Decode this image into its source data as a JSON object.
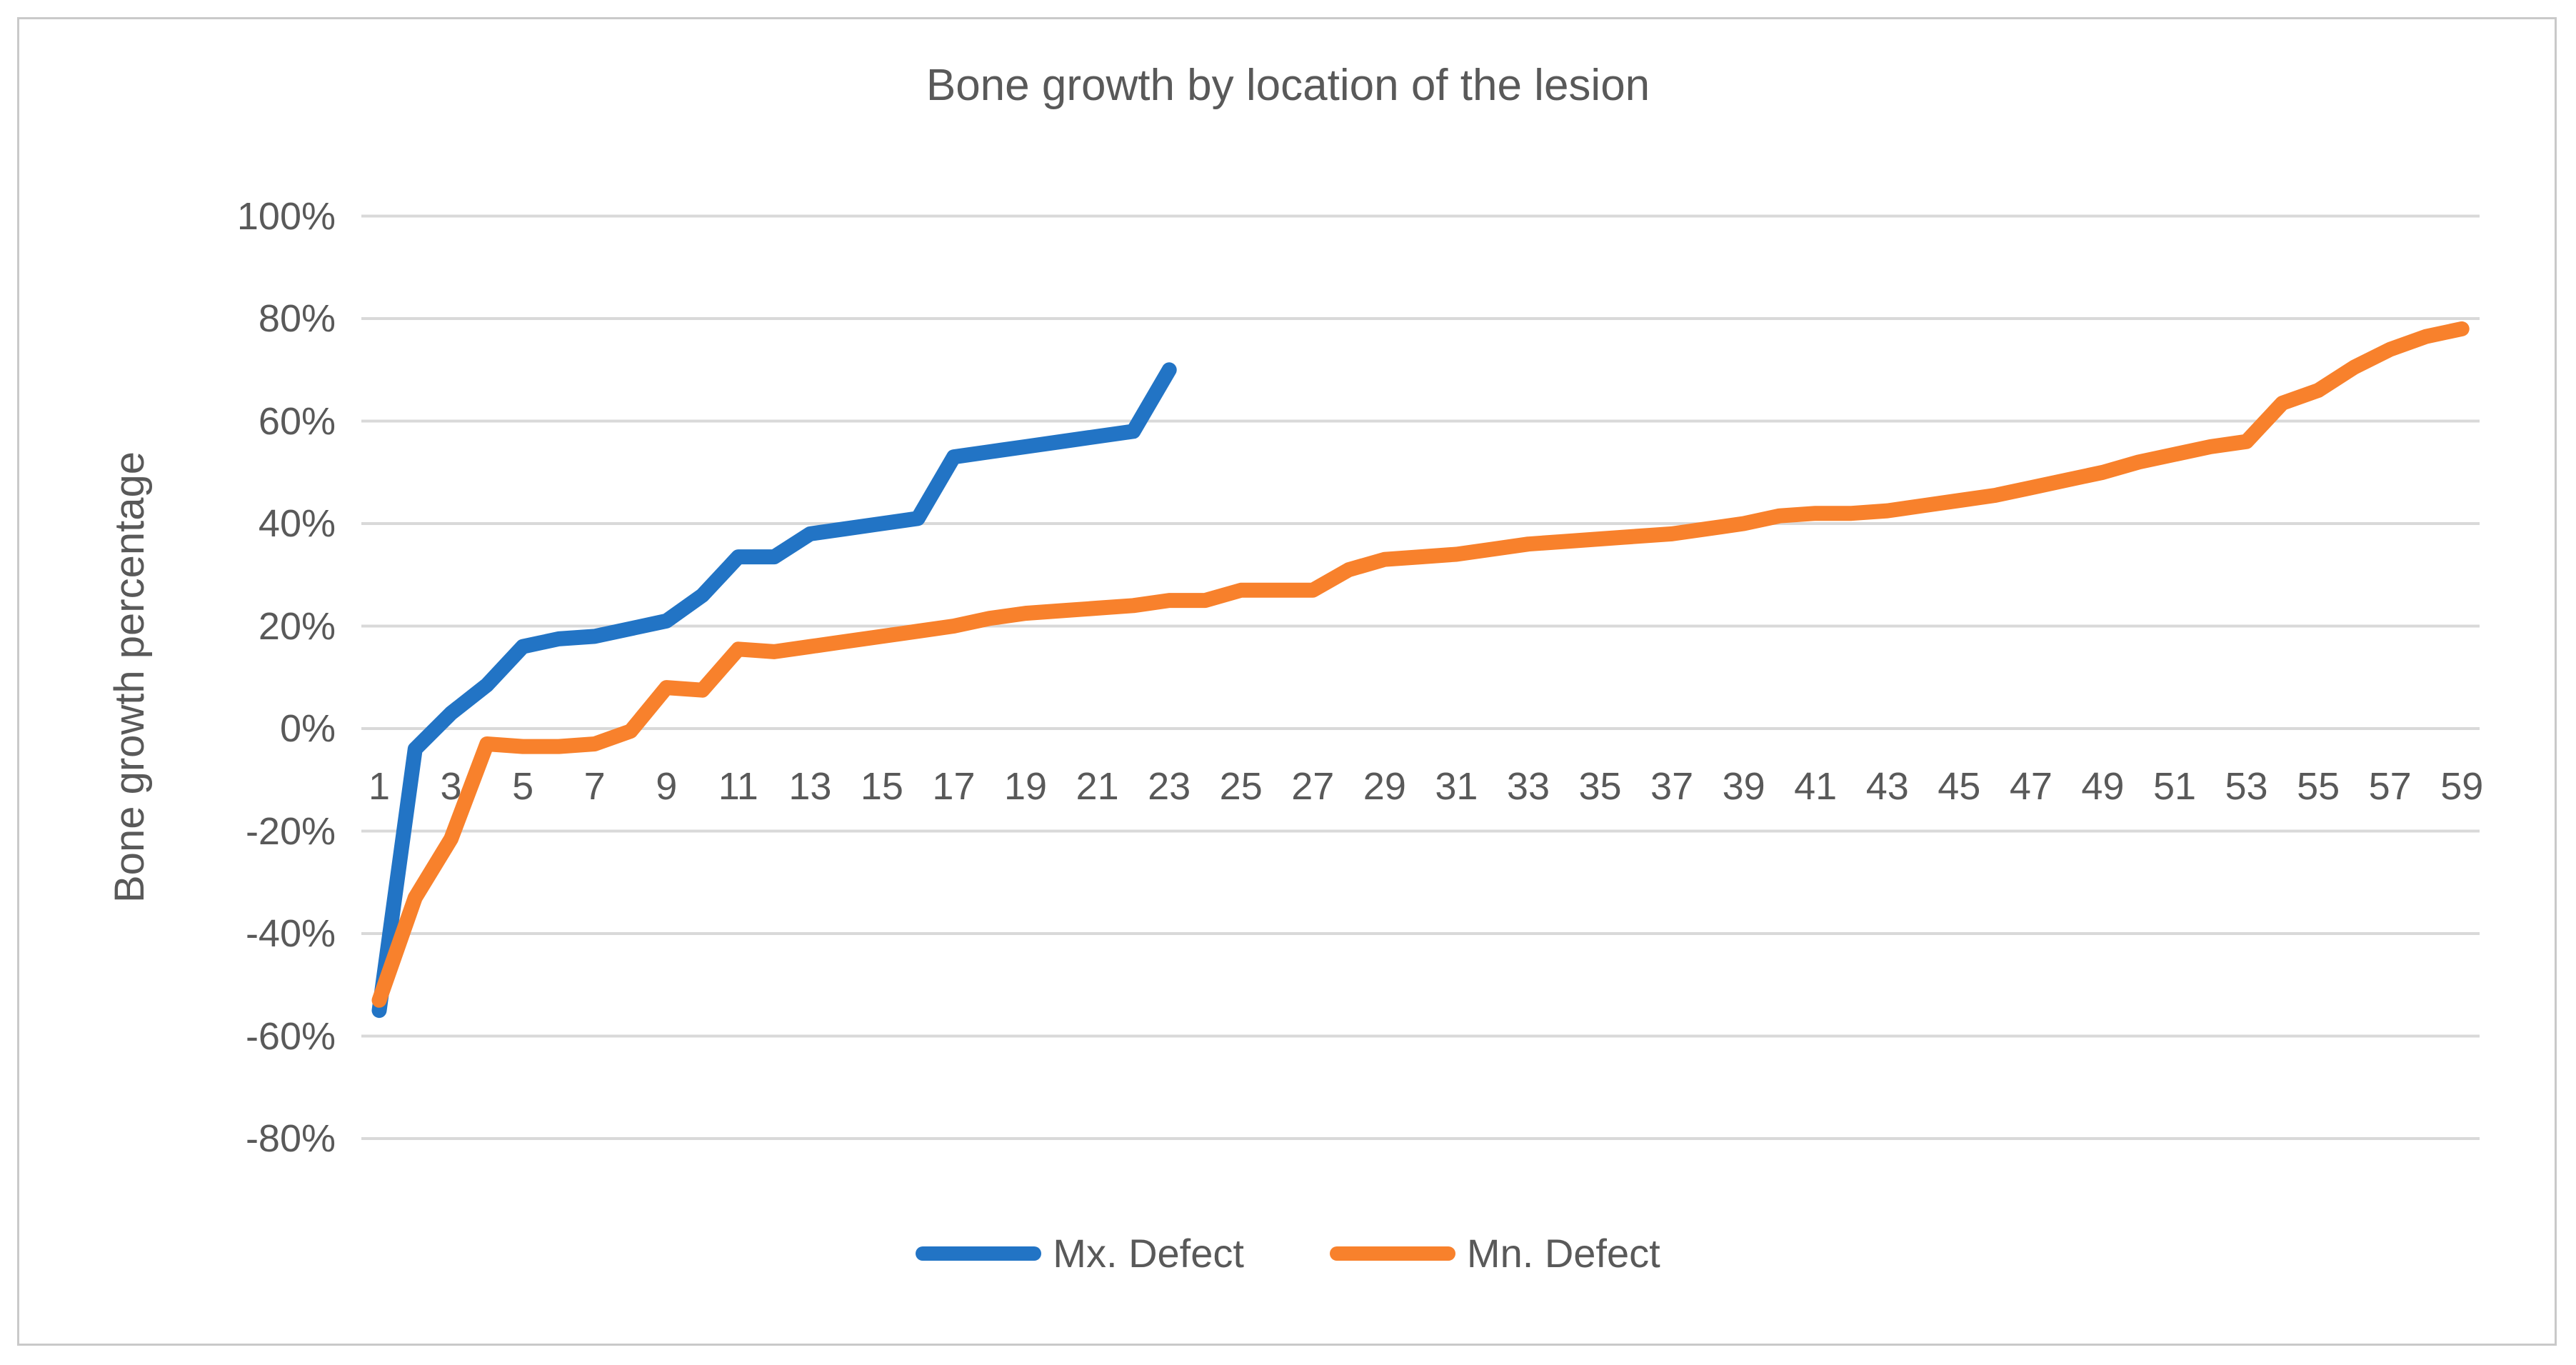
{
  "title": "Bone growth by location of the lesion",
  "colors": {
    "mx_defect": "#2274c5",
    "mn_defect": "#f8812c",
    "gridline": "#d9d9d9",
    "text": "#595959",
    "frame_border": "#c9c9c9"
  },
  "y_axis": {
    "label": "Bone growth percentage",
    "tick_labels": [
      "100%",
      "80%",
      "60%",
      "40%",
      "20%",
      "0%",
      "-20%",
      "-40%",
      "-60%",
      "-80%"
    ],
    "tick_values": [
      100,
      80,
      60,
      40,
      20,
      0,
      -20,
      -40,
      -60,
      -80
    ]
  },
  "x_axis": {
    "tick_labels": [
      "1",
      "3",
      "5",
      "7",
      "9",
      "11",
      "13",
      "15",
      "17",
      "19",
      "21",
      "23",
      "25",
      "27",
      "29",
      "31",
      "33",
      "35",
      "37",
      "39",
      "41",
      "43",
      "45",
      "47",
      "49",
      "51",
      "53",
      "55",
      "57",
      "59"
    ],
    "tick_values": [
      1,
      3,
      5,
      7,
      9,
      11,
      13,
      15,
      17,
      19,
      21,
      23,
      25,
      27,
      29,
      31,
      33,
      35,
      37,
      39,
      41,
      43,
      45,
      47,
      49,
      51,
      53,
      55,
      57,
      59
    ]
  },
  "legend": {
    "items": [
      {
        "label": "Mx. Defect",
        "color": "#2274c5"
      },
      {
        "label": "Mn. Defect",
        "color": "#f8812c"
      }
    ]
  },
  "chart_data": {
    "type": "line",
    "title": "Bone growth by location of the lesion",
    "xlabel": "",
    "ylabel": "Bone growth percentage",
    "ylim": [
      -80,
      100
    ],
    "xlim": [
      1,
      59
    ],
    "grid": true,
    "legend_position": "bottom",
    "series": [
      {
        "name": "Mx. Defect",
        "color": "#2274c5",
        "x": [
          1,
          2,
          3,
          4,
          5,
          6,
          7,
          8,
          9,
          10,
          11,
          12,
          13,
          14,
          15,
          16,
          17,
          18,
          19,
          20,
          21,
          22,
          23
        ],
        "values": [
          -55,
          -4,
          3,
          8.5,
          16,
          17.5,
          18,
          19.5,
          21,
          26,
          33.5,
          33.5,
          38,
          39,
          40,
          41,
          53,
          54,
          55,
          56,
          57,
          58,
          70
        ]
      },
      {
        "name": "Mn. Defect",
        "color": "#f8812c",
        "x": [
          1,
          2,
          3,
          4,
          5,
          6,
          7,
          8,
          9,
          10,
          11,
          12,
          13,
          14,
          15,
          16,
          17,
          18,
          19,
          20,
          21,
          22,
          23,
          24,
          25,
          26,
          27,
          28,
          29,
          30,
          31,
          32,
          33,
          34,
          35,
          36,
          37,
          38,
          39,
          40,
          41,
          42,
          43,
          44,
          45,
          46,
          47,
          48,
          49,
          50,
          51,
          52,
          53,
          54,
          55,
          56,
          57,
          58,
          59
        ],
        "values": [
          -53,
          -33,
          -21.5,
          -3,
          -3.5,
          -3.5,
          -3,
          -0.5,
          8,
          7.5,
          15.5,
          15,
          16,
          17,
          18,
          19,
          20,
          21.5,
          22.5,
          23,
          23.5,
          24,
          25,
          25,
          27,
          27,
          27,
          31,
          33,
          33.5,
          34,
          35,
          36,
          36.5,
          37,
          37.5,
          38,
          39,
          40,
          41.5,
          42,
          42,
          42.5,
          43.5,
          44.5,
          45.5,
          47,
          48.5,
          50,
          52,
          53.5,
          55,
          56,
          63.5,
          66,
          70.5,
          74,
          76.5,
          78
        ]
      }
    ]
  }
}
